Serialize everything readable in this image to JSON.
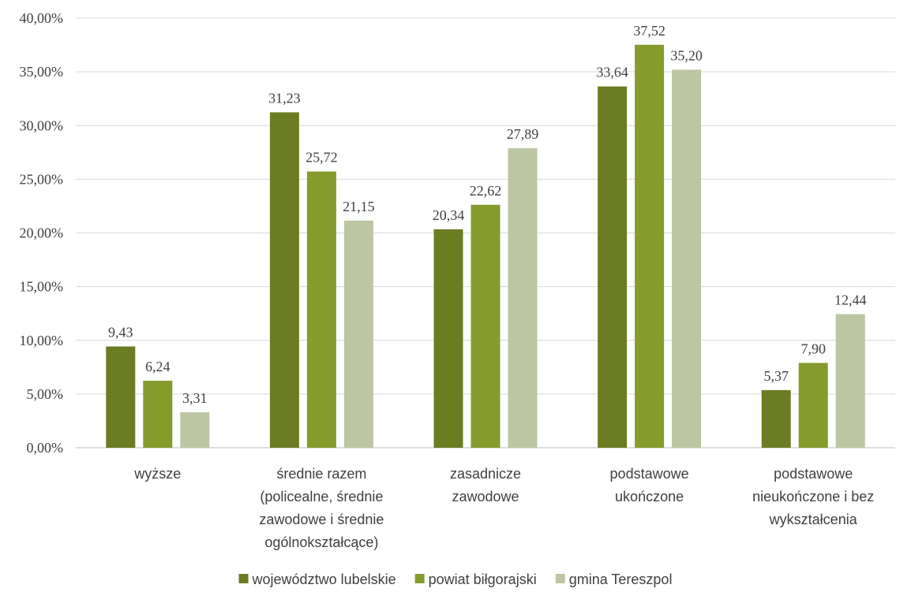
{
  "chart_data": {
    "type": "bar",
    "title": "",
    "xlabel": "",
    "ylabel": "",
    "ylim": [
      0,
      40
    ],
    "y_ticks": [
      "0,00%",
      "5,00%",
      "10,00%",
      "15,00%",
      "20,00%",
      "25,00%",
      "30,00%",
      "35,00%",
      "40,00%"
    ],
    "y_tick_values": [
      0,
      5,
      10,
      15,
      20,
      25,
      30,
      35,
      40
    ],
    "grid": true,
    "legend_position": "bottom",
    "categories": [
      [
        "wyższe"
      ],
      [
        "średnie razem",
        "(policealne, średnie",
        "zawodowe i średnie",
        "ogólnokształcące)"
      ],
      [
        "zasadnicze",
        "zawodowe"
      ],
      [
        "podstawowe",
        "ukończone"
      ],
      [
        "podstawowe",
        "nieukończone i bez",
        "wykształcenia"
      ]
    ],
    "series": [
      {
        "name": "województwo lubelskie",
        "color": "#6b7c23",
        "values": [
          9.43,
          31.23,
          20.34,
          33.64,
          5.37
        ],
        "labels": [
          "9,43",
          "31,23",
          "20,34",
          "33,64",
          "5,37"
        ]
      },
      {
        "name": "powiat biłgorajski",
        "color": "#859b2c",
        "values": [
          6.24,
          25.72,
          22.62,
          37.52,
          7.9
        ],
        "labels": [
          "6,24",
          "25,72",
          "22,62",
          "37,52",
          "7,90"
        ]
      },
      {
        "name": "gmina Tereszpol",
        "color": "#bcc6a3",
        "values": [
          3.31,
          21.15,
          27.89,
          35.2,
          12.44
        ],
        "labels": [
          "3,31",
          "21,15",
          "27,89",
          "35,20",
          "12,44"
        ]
      }
    ]
  }
}
